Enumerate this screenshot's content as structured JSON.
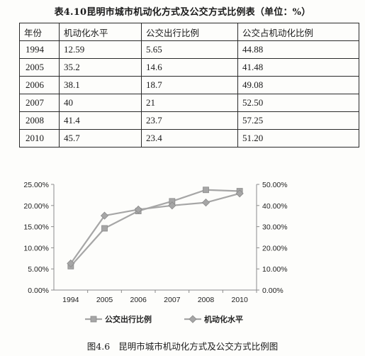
{
  "table": {
    "title": "表4.10昆明市城市机动化方式及公交方式比例表（单位：%）",
    "columns": [
      "年份",
      "机动化水平",
      "公交出行比例",
      "公交占机动化比例"
    ],
    "rows": [
      [
        "1994",
        "12.59",
        "5.65",
        "44.88"
      ],
      [
        "2005",
        "35.2",
        "14.6",
        "41.48"
      ],
      [
        "2006",
        "38.1",
        "18.7",
        "49.08"
      ],
      [
        "2007",
        "40",
        "21",
        "52.50"
      ],
      [
        "2008",
        "41.4",
        "23.7",
        "57.25"
      ],
      [
        "2010",
        "45.7",
        "23.4",
        "51.20"
      ]
    ]
  },
  "chart_data": {
    "type": "line",
    "categories": [
      "1994",
      "2005",
      "2006",
      "2007",
      "2008",
      "2010"
    ],
    "left_axis": {
      "ticks": [
        "0.00%",
        "5.00%",
        "10.00%",
        "15.00%",
        "20.00%",
        "25.00%"
      ],
      "range": [
        0,
        25
      ]
    },
    "right_axis": {
      "ticks": [
        "0.00%",
        "10.00%",
        "20.00%",
        "30.00%",
        "40.00%",
        "50.00%"
      ],
      "range": [
        0,
        50
      ]
    },
    "series": [
      {
        "name": "公交出行比例",
        "axis": "left",
        "marker": "square",
        "color": "#a6a6a6",
        "values": [
          5.65,
          14.6,
          18.7,
          21.0,
          23.7,
          23.4
        ]
      },
      {
        "name": "机动化水平",
        "axis": "right",
        "marker": "diamond",
        "color": "#a6a6a6",
        "values": [
          12.59,
          35.2,
          38.1,
          40.0,
          41.4,
          45.7
        ]
      }
    ],
    "grid": false,
    "legend": "bottom"
  },
  "caption": {
    "number": "图4.6",
    "text": "昆明市城市机动化方式及公交方式比例图"
  }
}
